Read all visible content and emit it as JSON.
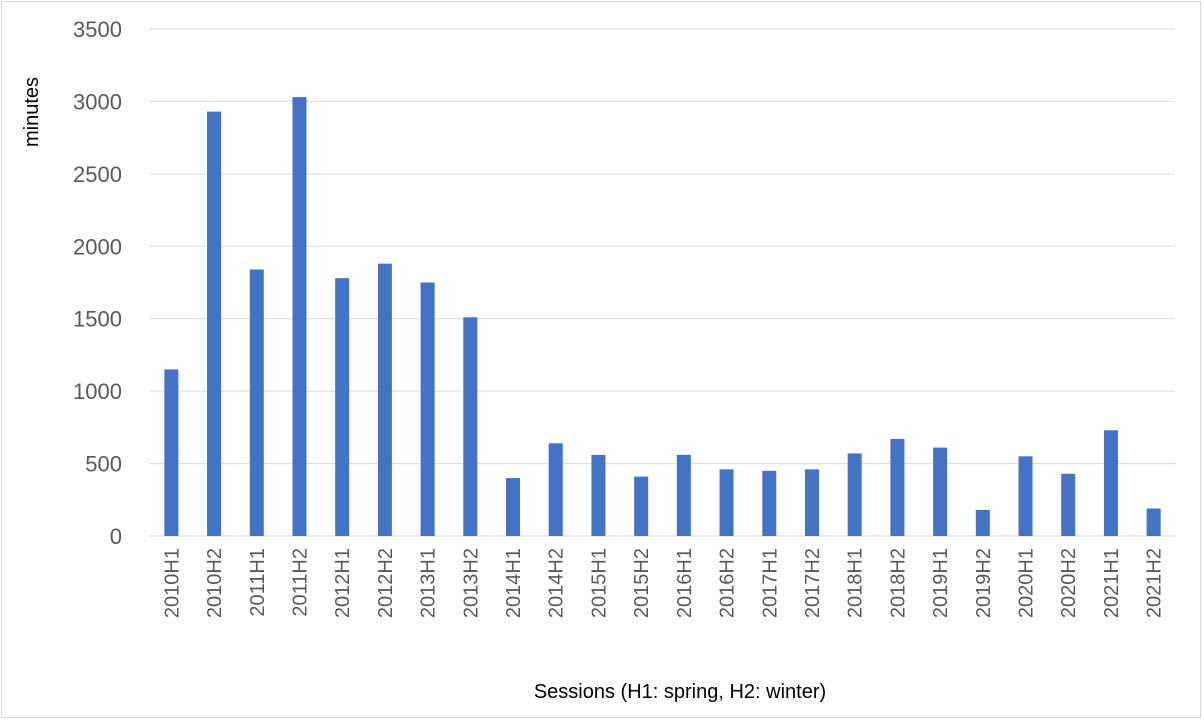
{
  "chart_data": {
    "type": "bar",
    "title": "",
    "xlabel": "Sessions (H1: spring, H2: winter)",
    "ylabel": "minutes",
    "ylim": [
      0,
      3500
    ],
    "yticks": [
      0,
      500,
      1000,
      1500,
      2000,
      2500,
      3000,
      3500
    ],
    "grid": true,
    "legend": "none",
    "bar_color": "#4472c4",
    "categories": [
      "2010H1",
      "2010H2",
      "2011H1",
      "2011H2",
      "2012H1",
      "2012H2",
      "2013H1",
      "2013H2",
      "2014H1",
      "2014H2",
      "2015H1",
      "2015H2",
      "2016H1",
      "2016H2",
      "2017H1",
      "2017H2",
      "2018H1",
      "2018H2",
      "2019H1",
      "2019H2",
      "2020H1",
      "2020H2",
      "2021H1",
      "2021H2"
    ],
    "values": [
      1150,
      2930,
      1840,
      3030,
      1780,
      1880,
      1750,
      1510,
      400,
      640,
      560,
      410,
      560,
      460,
      450,
      460,
      570,
      670,
      610,
      180,
      550,
      430,
      730,
      190
    ]
  }
}
